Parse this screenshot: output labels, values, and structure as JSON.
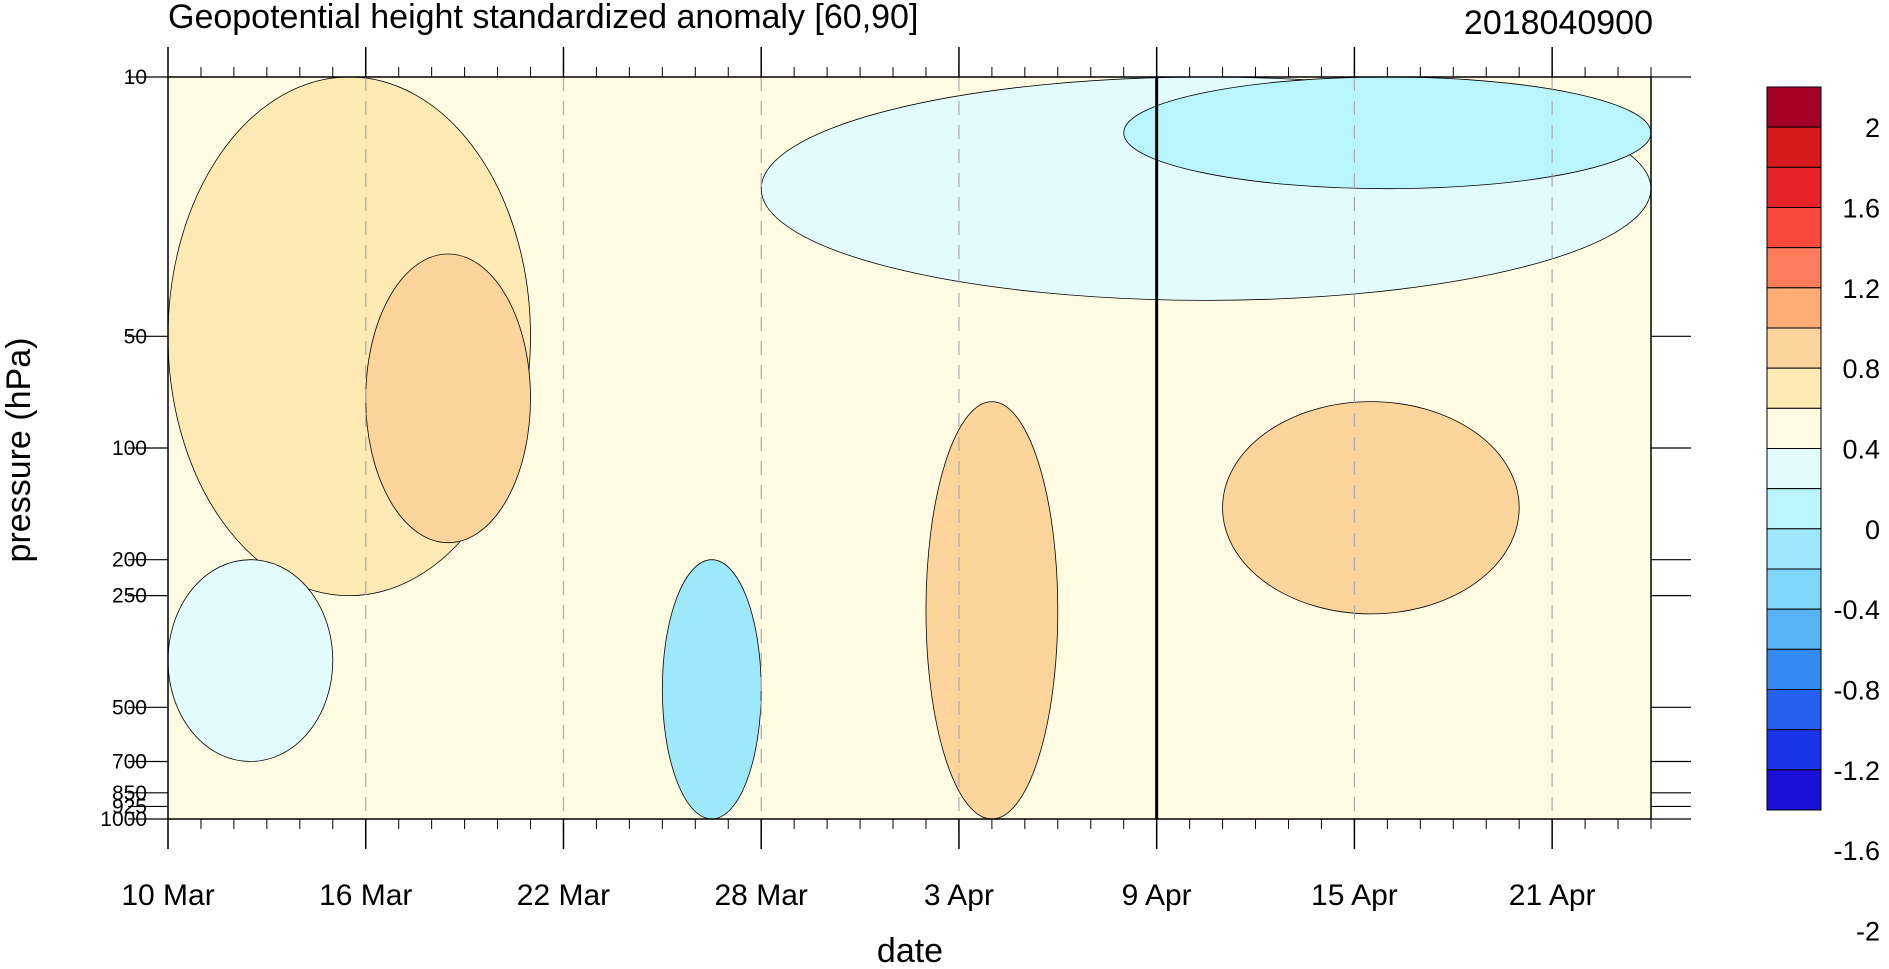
{
  "chart_data": {
    "type": "heatmap",
    "title": "Geopotential height standardized anomaly [60,90]",
    "subtitle": "2018040900",
    "xlabel": "date",
    "ylabel": "pressure (hPa)",
    "x_ticks": [
      "10 Mar",
      "16 Mar",
      "22 Mar",
      "28 Mar",
      "3 Apr",
      "9 Apr",
      "15 Apr",
      "21 Apr"
    ],
    "x_range": [
      "10 Mar",
      "24 Apr"
    ],
    "y_ticks": [
      "10",
      "50",
      "100",
      "200",
      "250",
      "500",
      "700",
      "850",
      "925",
      "1000"
    ],
    "y_scale": "log",
    "y_reversed": true,
    "y_range": [
      10,
      1000
    ],
    "analysis_time": "9 Apr",
    "grid": "dashed vertical lines at labeled dates",
    "colorbar": {
      "levels": [
        "2",
        "1.6",
        "1.2",
        "0.8",
        "0.4",
        "0",
        "-0.4",
        "-0.8",
        "-1.2",
        "-1.6",
        "-2"
      ],
      "colors": [
        "#a50026",
        "#d7191c",
        "#e8242b",
        "#fb4a3d",
        "#fc7d5c",
        "#fdae74",
        "#fdd49c",
        "#fde9b3",
        "#fffbe2",
        "#e2fbfd",
        "#baf4fc",
        "#9ee8fb",
        "#7ed6f8",
        "#58b3f6",
        "#3689f1",
        "#2560ee",
        "#1a35e9",
        "#1a10d8"
      ]
    },
    "anomaly_regions": [
      {
        "sign": "positive",
        "level": "0.4",
        "dates": [
          "10 Mar",
          "21 Mar"
        ],
        "pressure": [
          10,
          250
        ]
      },
      {
        "sign": "positive",
        "level": "0.8",
        "dates": [
          "16 Mar",
          "21 Mar"
        ],
        "pressure": [
          30,
          180
        ]
      },
      {
        "sign": "negative",
        "level": "0",
        "dates": [
          "10 Mar",
          "15 Mar"
        ],
        "pressure": [
          200,
          700
        ]
      },
      {
        "sign": "negative",
        "level": "-0.8",
        "dates": [
          "25 Mar",
          "28 Mar"
        ],
        "pressure": [
          200,
          1000
        ]
      },
      {
        "sign": "negative",
        "level": "0",
        "dates": [
          "28 Mar",
          "24 Apr"
        ],
        "pressure": [
          10,
          40
        ]
      },
      {
        "sign": "positive",
        "level": "0.8",
        "dates": [
          "2 Apr",
          "6 Apr"
        ],
        "pressure": [
          75,
          1000
        ]
      },
      {
        "sign": "positive",
        "level": "0.8",
        "dates": [
          "11 Apr",
          "20 Apr"
        ],
        "pressure": [
          75,
          280
        ]
      },
      {
        "sign": "negative",
        "level": "-0.4",
        "dates": [
          "8 Apr",
          "24 Apr"
        ],
        "pressure": [
          10,
          20
        ]
      }
    ]
  }
}
